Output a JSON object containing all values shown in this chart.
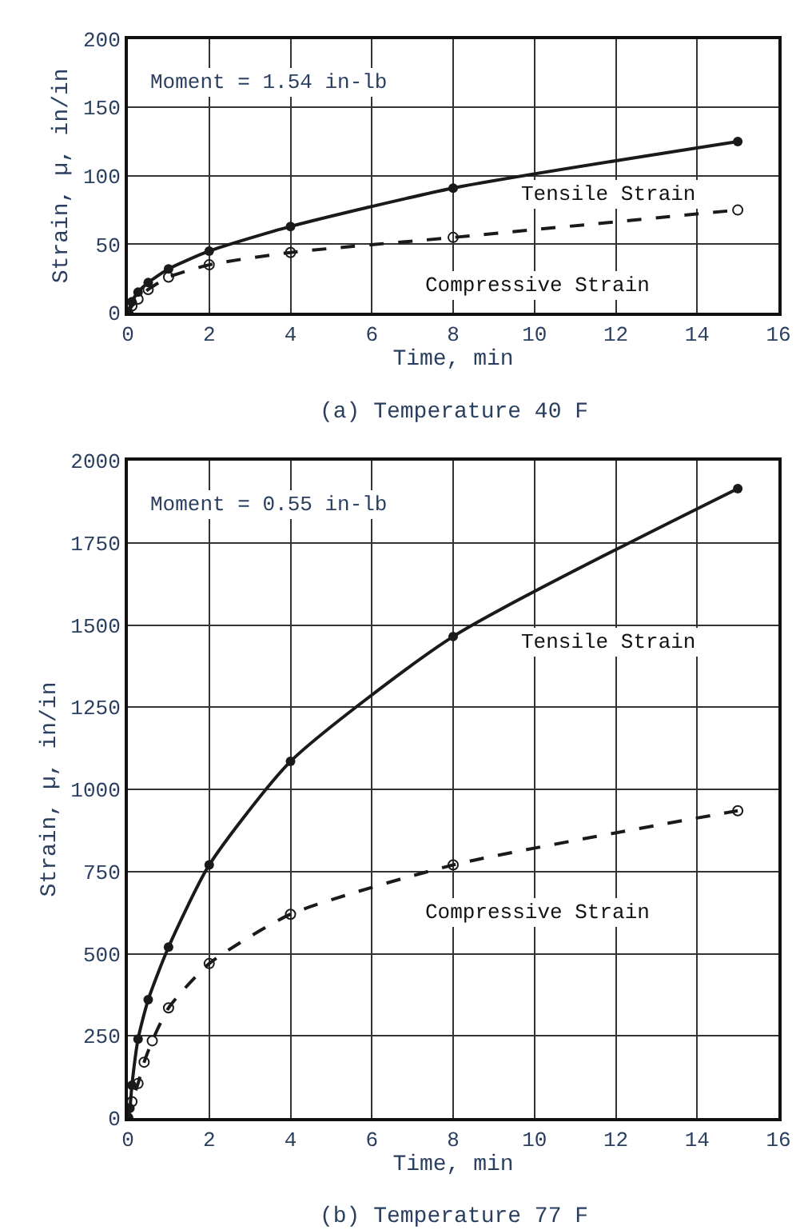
{
  "chart_data": [
    {
      "type": "line",
      "title": "(a) Temperature 40 F",
      "xlabel": "Time, min",
      "ylabel": "Strain, µ, in/in",
      "xlim": [
        0,
        16
      ],
      "xticks": [
        0,
        2,
        4,
        6,
        8,
        10,
        12,
        14,
        16
      ],
      "ylim": [
        0,
        200
      ],
      "yticks": [
        0,
        50,
        100,
        150,
        200
      ],
      "grid": true,
      "marker": "circle",
      "annotations": [
        "Moment = 1.54 in-lb"
      ],
      "series": [
        {
          "name": "Tensile Strain",
          "color": "#1a1a1a",
          "line_style": "solid",
          "x": [
            0,
            0.1,
            0.25,
            0.5,
            1,
            2,
            4,
            8,
            15
          ],
          "values": [
            0,
            8,
            15,
            22,
            32,
            45,
            63,
            91,
            125
          ]
        },
        {
          "name": "Compressive Strain",
          "color": "#1a1a1a",
          "line_style": "dashed",
          "x": [
            0,
            0.1,
            0.25,
            0.5,
            1,
            2,
            4,
            8,
            15
          ],
          "values": [
            0,
            5,
            10,
            17,
            26,
            35,
            44,
            55,
            75
          ]
        }
      ]
    },
    {
      "type": "line",
      "title": "(b) Temperature 77 F",
      "xlabel": "Time, min",
      "ylabel": "Strain, µ, in/in",
      "xlim": [
        0,
        16
      ],
      "xticks": [
        0,
        2,
        4,
        6,
        8,
        10,
        12,
        14,
        16
      ],
      "ylim": [
        0,
        2000
      ],
      "yticks": [
        0,
        250,
        500,
        750,
        1000,
        1250,
        1500,
        1750,
        2000
      ],
      "grid": true,
      "marker": "circle",
      "annotations": [
        "Moment = 0.55 in-lb"
      ],
      "series": [
        {
          "name": "Tensile Strain",
          "color": "#1a1a1a",
          "line_style": "solid",
          "x": [
            0,
            0.05,
            0.1,
            0.25,
            0.5,
            1,
            2,
            4,
            8,
            15
          ],
          "values": [
            0,
            30,
            100,
            240,
            360,
            520,
            770,
            1085,
            1465,
            1915
          ]
        },
        {
          "name": "Compressive Strain",
          "color": "#1a1a1a",
          "line_style": "dashed",
          "x": [
            0,
            0.1,
            0.25,
            0.4,
            0.6,
            1,
            2,
            4,
            8,
            15
          ],
          "values": [
            0,
            50,
            105,
            170,
            235,
            335,
            470,
            620,
            770,
            935
          ]
        }
      ]
    }
  ]
}
